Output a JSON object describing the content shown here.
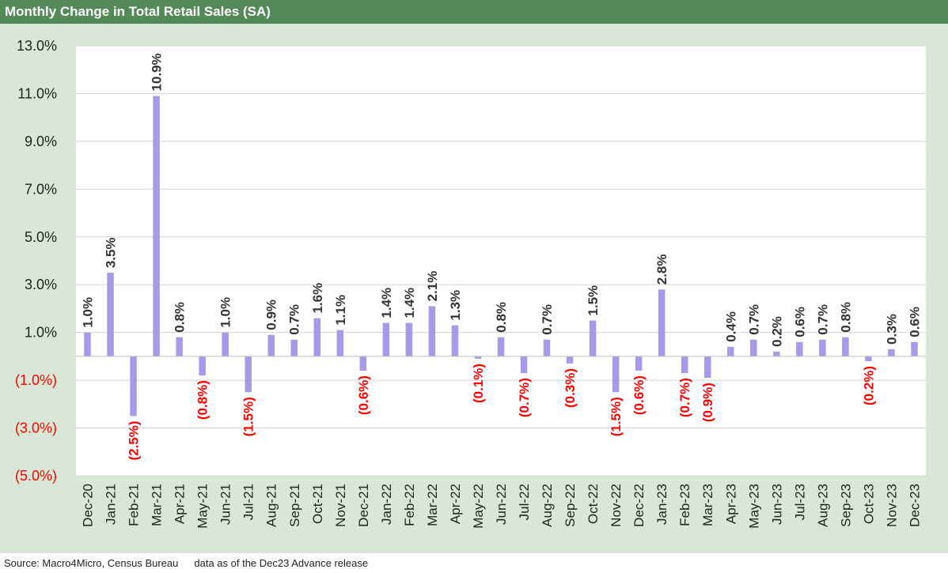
{
  "title": "Monthly Change in Total Retail Sales (SA)",
  "footer": {
    "source": "Source: Macro4Micro, Census Bureau",
    "note": "data as of the Dec23 Advance release"
  },
  "colors": {
    "title_bg": "#548a57",
    "chart_bg": "#d9e8d6",
    "bar": "#a59be8",
    "positive_label": "#333333",
    "negative_label": "#ff0000",
    "gridline": "#d4d4d4"
  },
  "chart_data": {
    "type": "bar",
    "title": "Monthly Change in Total Retail Sales (SA)",
    "xlabel": "",
    "ylabel": "",
    "ylim": [
      -5.0,
      13.0
    ],
    "yticks": [
      13.0,
      11.0,
      9.0,
      7.0,
      5.0,
      3.0,
      1.0,
      -1.0,
      -3.0,
      -5.0
    ],
    "ytick_labels": [
      "13.0%",
      "11.0%",
      "9.0%",
      "7.0%",
      "5.0%",
      "3.0%",
      "1.0%",
      "(1.0%)",
      "(3.0%)",
      "(5.0%)"
    ],
    "grid": true,
    "legend": "none",
    "categories": [
      "Dec-20",
      "Jan-21",
      "Feb-21",
      "Mar-21",
      "Apr-21",
      "May-21",
      "Jun-21",
      "Jul-21",
      "Aug-21",
      "Sep-21",
      "Oct-21",
      "Nov-21",
      "Dec-21",
      "Jan-22",
      "Feb-22",
      "Mar-22",
      "Apr-22",
      "May-22",
      "Jun-22",
      "Jul-22",
      "Aug-22",
      "Sep-22",
      "Oct-22",
      "Nov-22",
      "Dec-22",
      "Jan-23",
      "Feb-23",
      "Mar-23",
      "Apr-23",
      "May-23",
      "Jun-23",
      "Jul-23",
      "Aug-23",
      "Sep-23",
      "Oct-23",
      "Nov-23",
      "Dec-23"
    ],
    "values": [
      1.0,
      3.5,
      -2.5,
      10.9,
      0.8,
      -0.8,
      1.0,
      -1.5,
      0.9,
      0.7,
      1.6,
      1.1,
      -0.6,
      1.4,
      1.4,
      2.1,
      1.3,
      -0.1,
      0.8,
      -0.7,
      0.7,
      -0.3,
      1.5,
      -1.5,
      -0.6,
      2.8,
      -0.7,
      -0.9,
      0.4,
      0.7,
      0.2,
      0.6,
      0.7,
      0.8,
      -0.2,
      0.3,
      0.6
    ],
    "data_labels": [
      "1.0%",
      "3.5%",
      "(2.5%)",
      "10.9%",
      "0.8%",
      "(0.8%)",
      "1.0%",
      "(1.5%)",
      "0.9%",
      "0.7%",
      "1.6%",
      "1.1%",
      "(0.6%)",
      "1.4%",
      "1.4%",
      "2.1%",
      "1.3%",
      "(0.1%)",
      "0.8%",
      "(0.7%)",
      "0.7%",
      "(0.3%)",
      "1.5%",
      "(1.5%)",
      "(0.6%)",
      "2.8%",
      "(0.7%)",
      "(0.9%)",
      "0.4%",
      "0.7%",
      "0.2%",
      "0.6%",
      "0.7%",
      "0.8%",
      "(0.2%)",
      "0.3%",
      "0.6%"
    ]
  }
}
